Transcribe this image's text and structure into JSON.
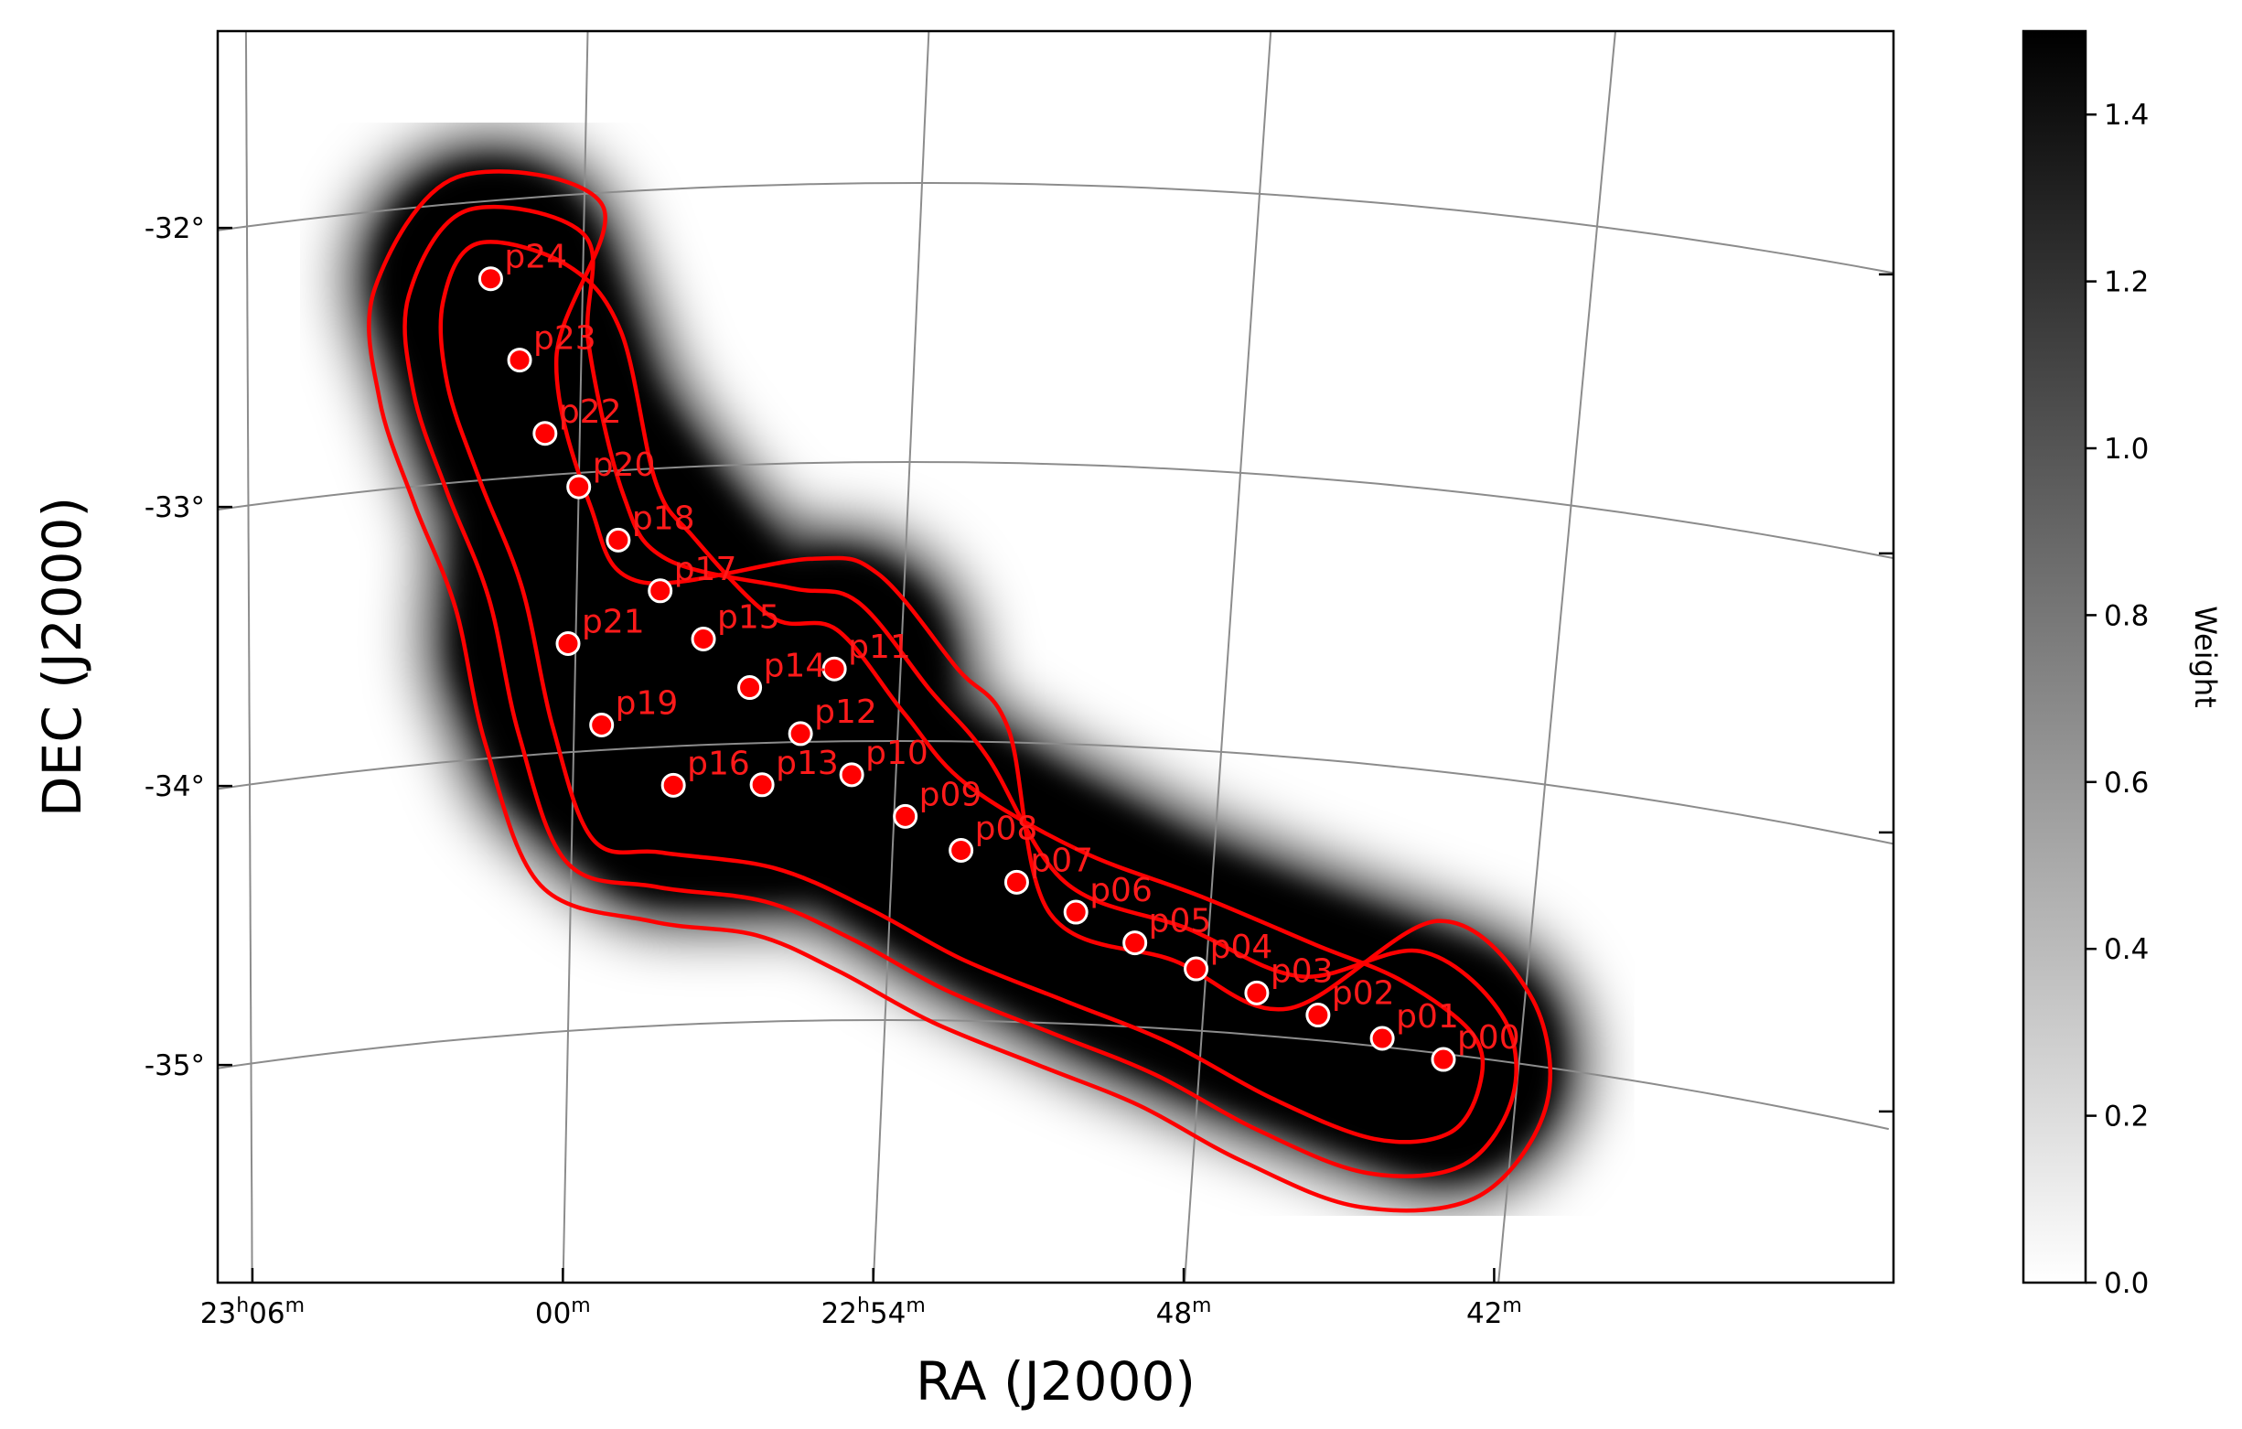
{
  "chart_data": {
    "type": "heatmap",
    "title": "",
    "xlabel": "RA (J2000)",
    "ylabel": "DEC (J2000)",
    "grid": true,
    "x_ticks": [
      {
        "value_min": 1386,
        "label_main": "23",
        "label_sup": "h",
        "label_tail": "06",
        "label_tail_sup": "m"
      },
      {
        "value_min": 1380,
        "label_main": "00",
        "label_sup": "m",
        "label_tail": "",
        "label_tail_sup": ""
      },
      {
        "value_min": 1374,
        "label_main": "22",
        "label_sup": "h",
        "label_tail": "54",
        "label_tail_sup": "m"
      },
      {
        "value_min": 1368,
        "label_main": "48",
        "label_sup": "m",
        "label_tail": "",
        "label_tail_sup": ""
      },
      {
        "value_min": 1362,
        "label_main": "42",
        "label_sup": "m",
        "label_tail": "",
        "label_tail_sup": ""
      }
    ],
    "y_ticks": [
      {
        "value": -32,
        "label": "-32°"
      },
      {
        "value": -33,
        "label": "-33°"
      },
      {
        "value": -34,
        "label": "-34°"
      },
      {
        "value": -35,
        "label": "-35°"
      }
    ],
    "ra_range_min": [
      1386.6,
      1356.5
    ],
    "dec_range": [
      -36.0,
      -31.5
    ],
    "colorbar": {
      "label": "Weight",
      "range": [
        0.0,
        1.5
      ],
      "ticks": [
        {
          "value": 0.0,
          "label": "0.0"
        },
        {
          "value": 0.2,
          "label": "0.2"
        },
        {
          "value": 0.4,
          "label": "0.4"
        },
        {
          "value": 0.6,
          "label": "0.6"
        },
        {
          "value": 0.8,
          "label": "0.8"
        },
        {
          "value": 1.0,
          "label": "1.0"
        },
        {
          "value": 1.2,
          "label": "1.2"
        },
        {
          "value": 1.4,
          "label": "1.4"
        }
      ],
      "colormap": "gray_r"
    },
    "contour_levels": [
      0.1,
      0.3,
      0.5
    ],
    "contour_color": "#ff0000",
    "marker_fill": "#ff0000",
    "marker_edge": "#ffffff",
    "label_color": "#ff1a1a",
    "points": [
      {
        "label": "p00",
        "ra_min": 1363.42,
        "dec": -35.02
      },
      {
        "label": "p01",
        "ra_min": 1364.6,
        "dec": -34.97
      },
      {
        "label": "p02",
        "ra_min": 1365.84,
        "dec": -34.91
      },
      {
        "label": "p03",
        "ra_min": 1367.02,
        "dec": -34.85
      },
      {
        "label": "p04",
        "ra_min": 1368.19,
        "dec": -34.78
      },
      {
        "label": "p05",
        "ra_min": 1369.37,
        "dec": -34.7
      },
      {
        "label": "p06",
        "ra_min": 1370.51,
        "dec": -34.6
      },
      {
        "label": "p07",
        "ra_min": 1371.65,
        "dec": -34.5
      },
      {
        "label": "p08",
        "ra_min": 1372.72,
        "dec": -34.39
      },
      {
        "label": "p09",
        "ra_min": 1373.79,
        "dec": -34.27
      },
      {
        "label": "p10",
        "ra_min": 1374.82,
        "dec": -34.12
      },
      {
        "label": "p11",
        "ra_min": 1375.22,
        "dec": -33.74
      },
      {
        "label": "p12",
        "ra_min": 1375.8,
        "dec": -33.97
      },
      {
        "label": "p13",
        "ra_min": 1376.48,
        "dec": -34.15
      },
      {
        "label": "p14",
        "ra_min": 1376.77,
        "dec": -33.8
      },
      {
        "label": "p15",
        "ra_min": 1377.65,
        "dec": -33.62
      },
      {
        "label": "p16",
        "ra_min": 1378.13,
        "dec": -34.14
      },
      {
        "label": "p17",
        "ra_min": 1378.47,
        "dec": -33.44
      },
      {
        "label": "p18",
        "ra_min": 1379.26,
        "dec": -33.25
      },
      {
        "label": "p19",
        "ra_min": 1379.49,
        "dec": -33.91
      },
      {
        "label": "p20",
        "ra_min": 1380.0,
        "dec": -33.05
      },
      {
        "label": "p21",
        "ra_min": 1380.14,
        "dec": -33.61
      },
      {
        "label": "p22",
        "ra_min": 1380.63,
        "dec": -32.85
      },
      {
        "label": "p23",
        "ra_min": 1381.11,
        "dec": -32.58
      },
      {
        "label": "p24",
        "ra_min": 1381.65,
        "dec": -32.28
      }
    ]
  }
}
